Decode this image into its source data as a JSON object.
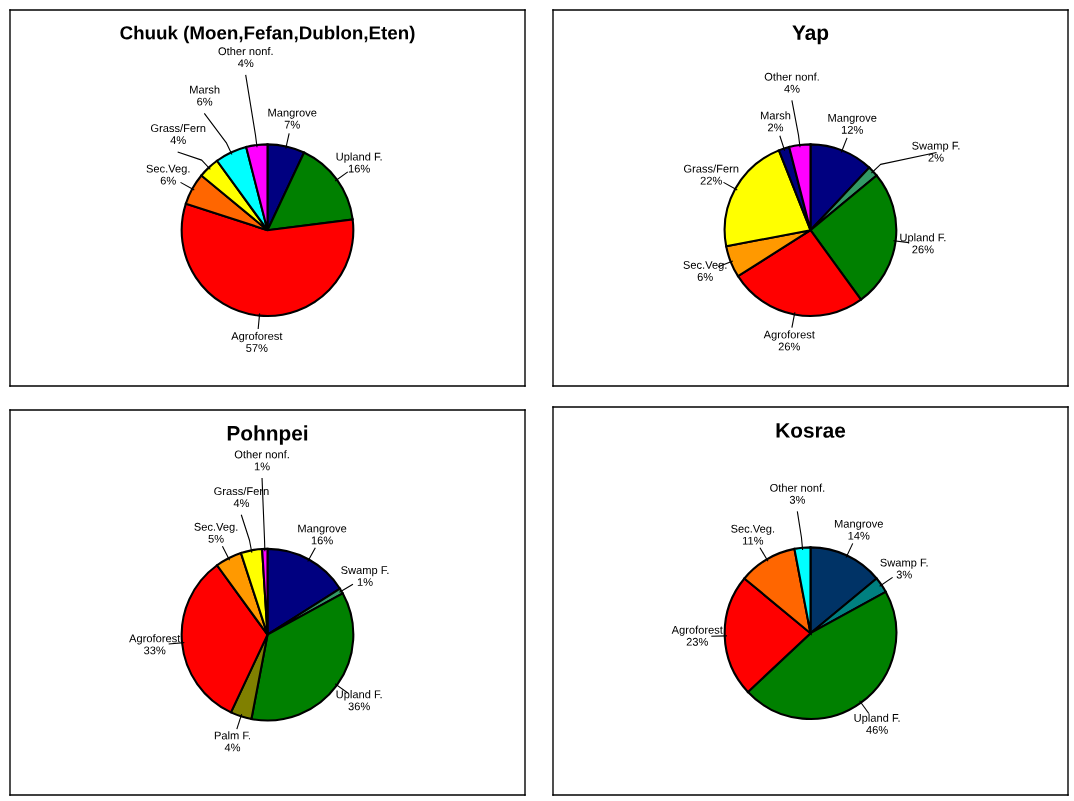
{
  "chart_data": [
    {
      "type": "pie",
      "title": "Chuuk (Moen,Fefan,Dublon,Eten)",
      "categories": [
        "Mangrove",
        "Upland F.",
        "Agroforest",
        "Sec.Veg.",
        "Grass/Fern",
        "Marsh",
        "Other nonf."
      ],
      "values": [
        7,
        16,
        57,
        6,
        4,
        6,
        4
      ],
      "value_labels": [
        "7%",
        "16%",
        "57%",
        "6%",
        "4%",
        "6%",
        "4%"
      ],
      "colors": [
        "#000080",
        "#008000",
        "#ff0000",
        "#ff6600",
        "#ffff00",
        "#00ffff",
        "#ff00ff"
      ]
    },
    {
      "type": "pie",
      "title": "Yap",
      "categories": [
        "Mangrove",
        "Swamp F.",
        "Upland F.",
        "Agroforest",
        "Sec.Veg.",
        "Grass/Fern",
        "Marsh",
        "Other nonf."
      ],
      "values": [
        12,
        2,
        26,
        26,
        6,
        22,
        2,
        4
      ],
      "value_labels": [
        "12%",
        "2%",
        "26%",
        "26%",
        "6%",
        "22%",
        "2%",
        "4%"
      ],
      "colors": [
        "#000080",
        "#339966",
        "#008000",
        "#ff0000",
        "#ff9900",
        "#ffff00",
        "#000080",
        "#ff00ff"
      ]
    },
    {
      "type": "pie",
      "title": "Pohnpei",
      "categories": [
        "Mangrove",
        "Swamp F.",
        "Upland F.",
        "Palm F.",
        "Agroforest",
        "Sec.Veg.",
        "Grass/Fern",
        "Other nonf."
      ],
      "values": [
        16,
        1,
        36,
        4,
        33,
        5,
        4,
        1
      ],
      "value_labels": [
        "16%",
        "1%",
        "36%",
        "4%",
        "33%",
        "5%",
        "4%",
        "1%"
      ],
      "colors": [
        "#000080",
        "#339966",
        "#008000",
        "#808000",
        "#ff0000",
        "#ff9900",
        "#ffff00",
        "#ff00ff"
      ]
    },
    {
      "type": "pie",
      "title": "Kosrae",
      "categories": [
        "Mangrove",
        "Swamp F.",
        "Upland F.",
        "Agroforest",
        "Sec.Veg.",
        "Other nonf."
      ],
      "values": [
        14,
        3,
        46,
        23,
        11,
        3
      ],
      "value_labels": [
        "14%",
        "3%",
        "46%",
        "23%",
        "11%",
        "3%"
      ],
      "colors": [
        "#003366",
        "#008080",
        "#008000",
        "#ff0000",
        "#ff6600",
        "#00ffff"
      ]
    }
  ]
}
